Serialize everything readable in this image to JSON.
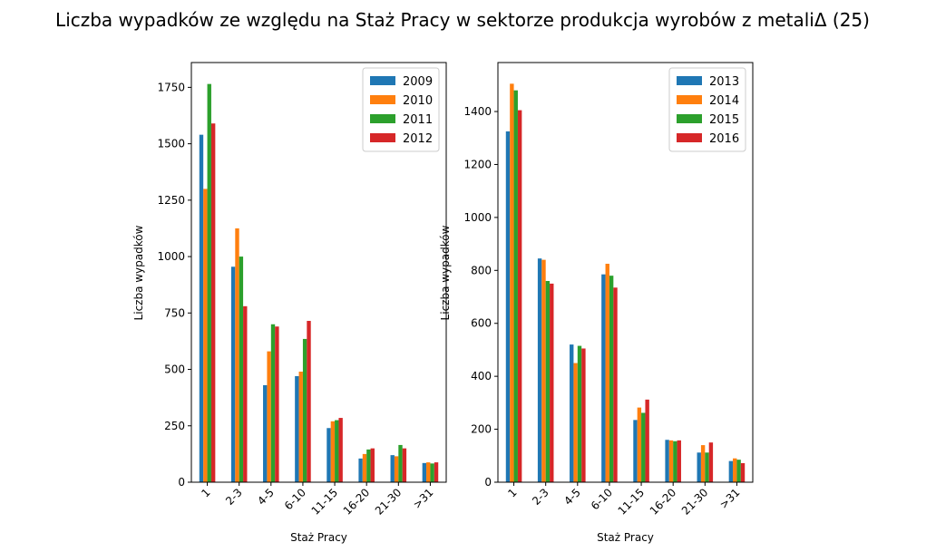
{
  "figure": {
    "suptitle": "Liczba wypadków ze względu na Staż Pracy w sektorze produkcja wyrobów z metaliΔ (25)"
  },
  "chart_data": [
    {
      "type": "bar",
      "title": "",
      "xlabel": "Staż Pracy",
      "ylabel": "Liczba wypadków",
      "categories": [
        "1",
        "2-3",
        "4-5",
        "6-10",
        "11-15",
        "16-20",
        "21-30",
        ">31"
      ],
      "ylim": [
        0,
        1860
      ],
      "yticks": [
        0,
        250,
        500,
        750,
        1000,
        1250,
        1500,
        1750
      ],
      "legend_position": "top-right",
      "grid": false,
      "series": [
        {
          "name": "2009",
          "color": "#1f77b4",
          "values": [
            1540,
            955,
            430,
            470,
            240,
            105,
            120,
            85
          ]
        },
        {
          "name": "2010",
          "color": "#ff7f0e",
          "values": [
            1300,
            1125,
            580,
            490,
            270,
            125,
            115,
            88
          ]
        },
        {
          "name": "2011",
          "color": "#2ca02c",
          "values": [
            1765,
            1000,
            700,
            635,
            275,
            145,
            165,
            83
          ]
        },
        {
          "name": "2012",
          "color": "#d62728",
          "values": [
            1590,
            780,
            690,
            715,
            285,
            150,
            150,
            88
          ]
        }
      ]
    },
    {
      "type": "bar",
      "title": "",
      "xlabel": "Staż Pracy",
      "ylabel": "Liczba wypadków",
      "categories": [
        "1",
        "2-3",
        "4-5",
        "6-10",
        "11-15",
        "16-20",
        "21-30",
        ">31"
      ],
      "ylim": [
        0,
        1585
      ],
      "yticks": [
        0,
        200,
        400,
        600,
        800,
        1000,
        1200,
        1400
      ],
      "legend_position": "top-right",
      "grid": false,
      "series": [
        {
          "name": "2013",
          "color": "#1f77b4",
          "values": [
            1325,
            845,
            520,
            785,
            235,
            160,
            112,
            80
          ]
        },
        {
          "name": "2014",
          "color": "#ff7f0e",
          "values": [
            1505,
            840,
            450,
            825,
            282,
            158,
            140,
            90
          ]
        },
        {
          "name": "2015",
          "color": "#2ca02c",
          "values": [
            1480,
            760,
            515,
            780,
            262,
            155,
            112,
            85
          ]
        },
        {
          "name": "2016",
          "color": "#d62728",
          "values": [
            1405,
            750,
            505,
            735,
            312,
            158,
            150,
            72
          ]
        }
      ]
    }
  ]
}
